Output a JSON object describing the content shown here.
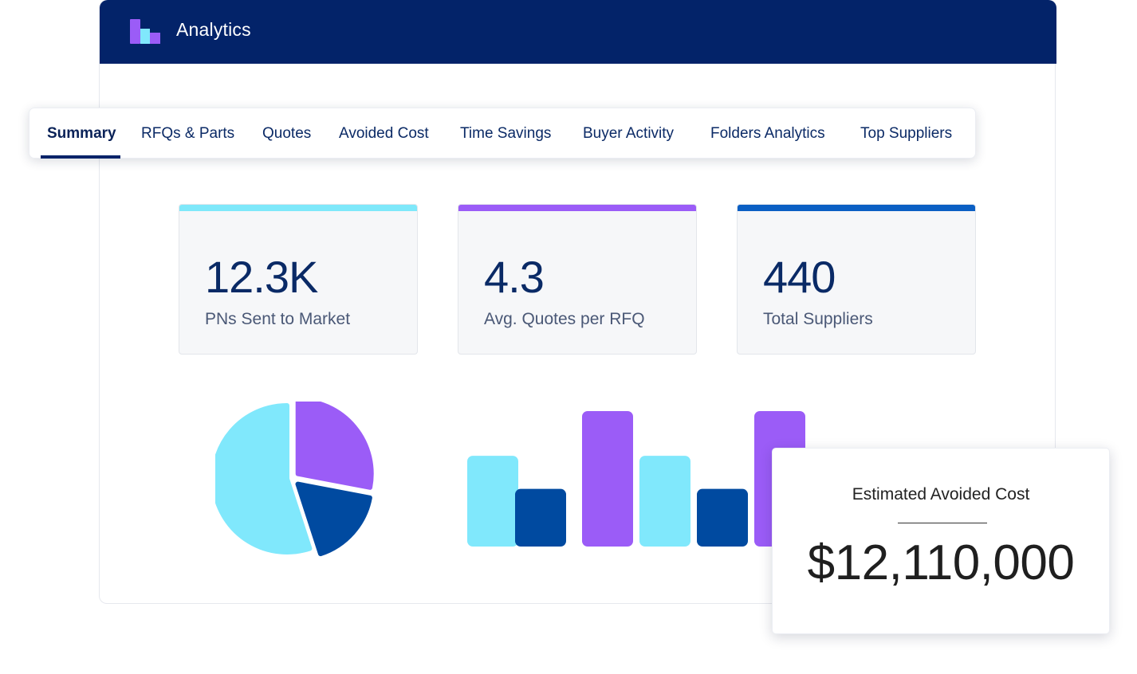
{
  "app": {
    "title": "Analytics"
  },
  "tabs": [
    {
      "label": "Summary",
      "active": true
    },
    {
      "label": "RFQs & Parts",
      "active": false
    },
    {
      "label": "Quotes",
      "active": false
    },
    {
      "label": "Avoided Cost",
      "active": false
    },
    {
      "label": "Time Savings",
      "active": false
    },
    {
      "label": "Buyer Activity",
      "active": false
    },
    {
      "label": "Folders Analytics",
      "active": false
    },
    {
      "label": "Top Suppliers",
      "active": false
    }
  ],
  "kpis": [
    {
      "value": "12.3K",
      "label": "PNs Sent to Market",
      "color": "#7ee8fa"
    },
    {
      "value": "4.3",
      "label": "Avg. Quotes per RFQ",
      "color": "#9b5cf7"
    },
    {
      "value": "440",
      "label": "Total Suppliers",
      "color": "#0a5fc4"
    }
  ],
  "callout": {
    "title": "Estimated Avoided Cost",
    "amount": "$12,110,000"
  },
  "colors": {
    "navy": "#032369",
    "cyan": "#80e8fc",
    "purple": "#9b5cf7",
    "blue": "#004aa0"
  },
  "chart_data": [
    {
      "type": "pie",
      "values": [
        55,
        28,
        17
      ],
      "colors": [
        "#80e8fc",
        "#9b5cf7",
        "#004aa0"
      ]
    },
    {
      "type": "bar",
      "values": [
        63,
        40,
        94,
        63,
        40,
        94
      ],
      "colors": [
        "#80e8fc",
        "#004aa0",
        "#9b5cf7",
        "#80e8fc",
        "#004aa0",
        "#9b5cf7"
      ]
    }
  ]
}
